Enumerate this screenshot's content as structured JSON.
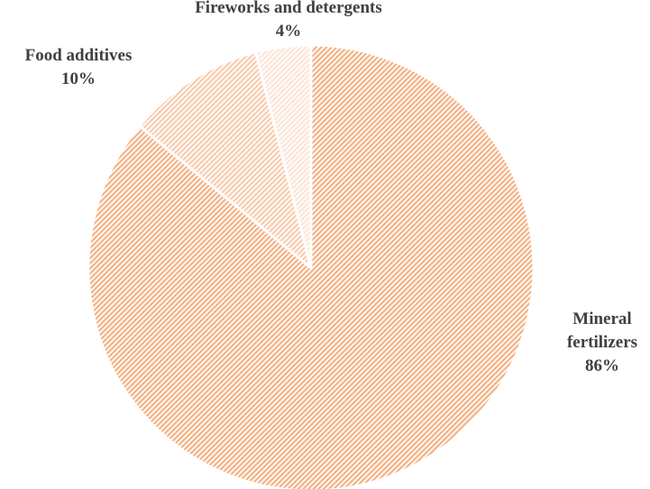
{
  "chart_data": {
    "type": "pie",
    "title": "",
    "slices": [
      {
        "label_lines": [
          "Mineral",
          "fertilizers"
        ],
        "value": 86,
        "value_label": "86%",
        "color": "#f4b183",
        "pattern": "diagonal-hatch"
      },
      {
        "label_lines": [
          "Food additives"
        ],
        "value": 10,
        "value_label": "10%",
        "color": "#f8cbad",
        "pattern": "diagonal-hatch"
      },
      {
        "label_lines": [
          "Fireworks and detergents"
        ],
        "value": 4,
        "value_label": "4%",
        "color": "#fbe5d6",
        "pattern": "diagonal-hatch"
      }
    ],
    "start_angle": "12 o'clock",
    "direction": "clockwise",
    "legend": "none",
    "data_labels": "outside, category name and percentage"
  }
}
